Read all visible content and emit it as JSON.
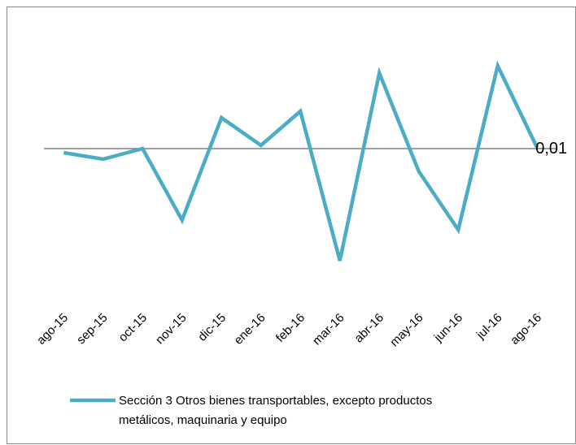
{
  "chart_data": {
    "type": "line",
    "categories": [
      "ago-15",
      "sep-15",
      "oct-15",
      "nov-15",
      "dic-15",
      "ene-16",
      "feb-16",
      "mar-16",
      "abr-16",
      "may-16",
      "jun-16",
      "jul-16",
      "ago-16"
    ],
    "series": [
      {
        "name": "Sección 3 Otros bienes transportables, excepto productos metálicos, maquinaria y equipo",
        "color": "#4bacc6",
        "values": [
          -0.05,
          -0.13,
          0,
          -0.88,
          0.38,
          0.04,
          0.46,
          -1.38,
          0.93,
          -0.28,
          -1.0,
          1.02,
          0.01
        ],
        "value_labels": [
          null,
          null,
          null,
          null,
          null,
          null,
          null,
          null,
          null,
          null,
          null,
          null,
          "0,01"
        ]
      }
    ],
    "ylim": [
      -1.72,
      1.63
    ]
  }
}
